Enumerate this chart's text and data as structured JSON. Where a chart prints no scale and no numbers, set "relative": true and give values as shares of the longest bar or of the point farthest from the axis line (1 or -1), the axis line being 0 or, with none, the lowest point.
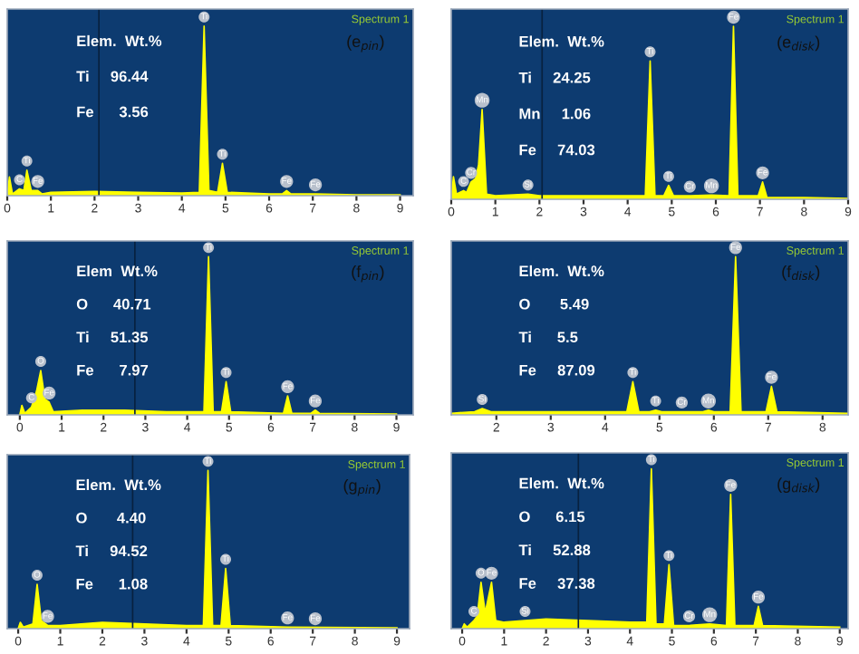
{
  "chart_data": [
    {
      "type": "area",
      "relative": true,
      "xlim": [
        0,
        9.3
      ],
      "xticks": [
        0,
        1,
        2,
        3,
        4,
        5,
        6,
        7,
        8,
        9
      ],
      "series": [
        {
          "color": "#ffff00",
          "x": [
            0,
            0.05,
            0.12,
            0.28,
            0.38,
            0.45,
            0.55,
            0.7,
            0.8,
            1.0,
            2.0,
            3.0,
            4.0,
            4.4,
            4.51,
            4.62,
            4.82,
            4.93,
            5.04,
            6.0,
            6.3,
            6.4,
            6.5,
            7.06,
            8.0,
            9.0
          ],
          "values": [
            0,
            0.11,
            0.01,
            0.04,
            0.03,
            0.15,
            0.03,
            0.03,
            0.01,
            0.02,
            0.025,
            0.02,
            0.015,
            0.02,
            1.0,
            0.03,
            0.02,
            0.19,
            0.02,
            0.01,
            0.01,
            0.03,
            0.01,
            0.01,
            0.005,
            0.005
          ]
        }
      ],
      "ref_lines": [
        {
          "axis": "x",
          "value": 2.1,
          "color": "#08213f"
        }
      ],
      "annotations": [
        "Spectrum 1",
        "(e$_{pin}$)",
        "Elem.  Wt.%",
        "Ti     96.44",
        "Fe      3.56",
        {
          "text": "C",
          "x": 0.28,
          "y": 0.04
        },
        {
          "text": "Ti",
          "x": 0.45,
          "y": 0.15
        },
        {
          "text": "Fe",
          "x": 0.7,
          "y": 0.03
        },
        {
          "text": "Ti",
          "x": 4.51,
          "y": 1.0
        },
        {
          "text": "Ti",
          "x": 4.93,
          "y": 0.19
        },
        {
          "text": "Fe",
          "x": 6.4,
          "y": 0.03
        },
        {
          "text": "Fe",
          "x": 7.06,
          "y": 0.01
        }
      ]
    },
    {
      "type": "area",
      "relative": true,
      "xlim": [
        0,
        9
      ],
      "xticks": [
        0,
        1,
        2,
        3,
        4,
        5,
        6,
        7,
        8,
        9
      ],
      "series": [
        {
          "color": "#ffff00",
          "x": [
            0,
            0.05,
            0.12,
            0.28,
            0.35,
            0.45,
            0.55,
            0.62,
            0.7,
            0.8,
            1.0,
            1.74,
            2.0,
            3.0,
            4.0,
            4.4,
            4.51,
            4.62,
            4.82,
            4.93,
            5.04,
            5.41,
            5.9,
            6.3,
            6.4,
            6.5,
            6.96,
            7.06,
            7.16,
            8.0,
            9.0
          ],
          "values": [
            0,
            0.13,
            0.03,
            0.05,
            0.04,
            0.1,
            0.12,
            0.2,
            0.52,
            0.03,
            0.02,
            0.03,
            0.02,
            0.02,
            0.02,
            0.02,
            0.8,
            0.02,
            0.02,
            0.08,
            0.02,
            0.02,
            0.025,
            0.02,
            1.0,
            0.02,
            0.02,
            0.1,
            0.01,
            0.01,
            0.005
          ]
        }
      ],
      "ref_lines": [
        {
          "axis": "x",
          "value": 2.06,
          "color": "#08213f"
        }
      ],
      "annotations": [
        "Spectrum 1",
        "(e$_{disk}$)",
        "Elem.  Wt.%",
        "Ti     24.25",
        "Mn     1.06",
        "Fe     74.03",
        {
          "text": "C",
          "x": 0.28,
          "y": 0.05
        },
        {
          "text": "Cr",
          "x": 0.45,
          "y": 0.1
        },
        {
          "text": "Mn",
          "x": 0.7,
          "y": 0.52
        },
        {
          "text": "Si",
          "x": 1.74,
          "y": 0.03
        },
        {
          "text": "Ti",
          "x": 4.51,
          "y": 0.8
        },
        {
          "text": "Ti",
          "x": 4.93,
          "y": 0.08
        },
        {
          "text": "Cr",
          "x": 5.41,
          "y": 0.02
        },
        {
          "text": "Mn",
          "x": 5.9,
          "y": 0.025
        },
        {
          "text": "Fe",
          "x": 6.4,
          "y": 1.0
        },
        {
          "text": "Fe",
          "x": 7.06,
          "y": 0.1
        }
      ]
    },
    {
      "type": "area",
      "relative": true,
      "xlim": [
        -0.3,
        9.4
      ],
      "xticks": [
        0,
        1,
        2,
        3,
        4,
        5,
        6,
        7,
        8,
        9
      ],
      "series": [
        {
          "color": "#ffff00",
          "x": [
            0,
            0.05,
            0.12,
            0.28,
            0.4,
            0.5,
            0.6,
            0.7,
            0.8,
            1.5,
            2.5,
            3.5,
            4.4,
            4.51,
            4.62,
            4.82,
            4.93,
            5.04,
            6.3,
            6.4,
            6.5,
            6.96,
            7.06,
            7.16,
            9.0
          ],
          "values": [
            0,
            0.06,
            0.01,
            0.05,
            0.15,
            0.28,
            0.1,
            0.08,
            0.02,
            0.03,
            0.03,
            0.02,
            0.02,
            1.0,
            0.02,
            0.02,
            0.21,
            0.02,
            0.01,
            0.12,
            0.01,
            0.01,
            0.03,
            0.01,
            0.005
          ]
        }
      ],
      "ref_lines": [
        {
          "axis": "x",
          "value": 2.75,
          "color": "#08213f"
        }
      ],
      "annotations": [
        "Spectrum 1",
        "(f$_{pin}$)",
        "Elem  Wt.%",
        "O      40.71",
        "Ti     51.35",
        "Fe      7.97",
        {
          "text": "C",
          "x": 0.28,
          "y": 0.05
        },
        {
          "text": "O",
          "x": 0.5,
          "y": 0.28
        },
        {
          "text": "Fe",
          "x": 0.7,
          "y": 0.08
        },
        {
          "text": "Ti",
          "x": 4.51,
          "y": 1.0
        },
        {
          "text": "Ti",
          "x": 4.93,
          "y": 0.21
        },
        {
          "text": "Fe",
          "x": 6.4,
          "y": 0.12
        },
        {
          "text": "Fe",
          "x": 7.06,
          "y": 0.03
        }
      ]
    },
    {
      "type": "area",
      "relative": true,
      "xlim": [
        1.17,
        8.47
      ],
      "xticks": [
        2,
        3,
        4,
        5,
        6,
        7,
        8
      ],
      "series": [
        {
          "color": "#ffff00",
          "x": [
            1.17,
            1.6,
            1.74,
            1.9,
            3.0,
            4.4,
            4.51,
            4.62,
            4.82,
            4.93,
            5.04,
            5.41,
            5.8,
            5.9,
            6.0,
            6.3,
            6.4,
            6.5,
            6.96,
            7.06,
            7.16,
            8.47
          ],
          "values": [
            0.01,
            0.02,
            0.04,
            0.02,
            0.02,
            0.02,
            0.21,
            0.02,
            0.02,
            0.03,
            0.02,
            0.02,
            0.02,
            0.03,
            0.02,
            0.02,
            1.0,
            0.02,
            0.02,
            0.18,
            0.02,
            0.01
          ]
        }
      ],
      "annotations": [
        "Spectrum 1",
        "(f$_{disk}$)",
        "Elem.  Wt.%",
        "O       5.49",
        "Ti      5.5",
        "Fe     87.09",
        {
          "text": "Si",
          "x": 1.74,
          "y": 0.04
        },
        {
          "text": "Ti",
          "x": 4.51,
          "y": 0.21
        },
        {
          "text": "Ti",
          "x": 4.93,
          "y": 0.03
        },
        {
          "text": "Cr",
          "x": 5.41,
          "y": 0.02
        },
        {
          "text": "Mn",
          "x": 5.9,
          "y": 0.03
        },
        {
          "text": "Fe",
          "x": 6.4,
          "y": 1.0
        },
        {
          "text": "Fe",
          "x": 7.06,
          "y": 0.18
        }
      ]
    },
    {
      "type": "area",
      "relative": true,
      "xlim": [
        -0.26,
        9.3
      ],
      "xticks": [
        0,
        1,
        2,
        3,
        4,
        5,
        6,
        7,
        8,
        9
      ],
      "series": [
        {
          "color": "#ffff00",
          "x": [
            0,
            0.05,
            0.12,
            0.35,
            0.45,
            0.55,
            0.7,
            1.0,
            2.0,
            3.0,
            4.0,
            4.4,
            4.51,
            4.62,
            4.82,
            4.93,
            5.04,
            6.4,
            9.0
          ],
          "values": [
            0,
            0.04,
            0.01,
            0.03,
            0.28,
            0.05,
            0.02,
            0.02,
            0.04,
            0.03,
            0.02,
            0.02,
            1.0,
            0.02,
            0.02,
            0.38,
            0.02,
            0.01,
            0.005
          ]
        }
      ],
      "ref_lines": [
        {
          "axis": "x",
          "value": 2.72,
          "color": "#08213f"
        }
      ],
      "annotations": [
        "Spectrum 1",
        "(g$_{pin}$)",
        "Elem.  Wt.%",
        "O       4.40",
        "Ti     94.52",
        "Fe      1.08",
        {
          "text": "O",
          "x": 0.45,
          "y": 0.28
        },
        {
          "text": "Fe",
          "x": 0.7,
          "y": 0.02
        },
        {
          "text": "Ti",
          "x": 4.51,
          "y": 1.0
        },
        {
          "text": "Ti",
          "x": 4.93,
          "y": 0.38
        },
        {
          "text": "Fe",
          "x": 6.4,
          "y": 0.01
        },
        {
          "text": "Fe",
          "x": 7.06,
          "y": 0.005
        }
      ]
    },
    {
      "type": "area",
      "relative": true,
      "xlim": [
        -0.26,
        9.2
      ],
      "xticks": [
        0,
        1,
        2,
        3,
        4,
        5,
        6,
        7,
        8,
        9
      ],
      "series": [
        {
          "color": "#ffff00",
          "x": [
            0,
            0.05,
            0.12,
            0.28,
            0.36,
            0.45,
            0.55,
            0.7,
            0.8,
            1.0,
            1.5,
            2.0,
            3.0,
            4.0,
            4.4,
            4.51,
            4.62,
            4.82,
            4.93,
            5.04,
            5.41,
            5.9,
            6.3,
            6.4,
            6.5,
            6.96,
            7.06,
            7.16,
            9.0
          ],
          "values": [
            0,
            0.03,
            0.01,
            0.05,
            0.08,
            0.29,
            0.1,
            0.29,
            0.05,
            0.04,
            0.05,
            0.06,
            0.05,
            0.04,
            0.04,
            1.0,
            0.03,
            0.03,
            0.4,
            0.02,
            0.02,
            0.03,
            0.02,
            0.84,
            0.02,
            0.02,
            0.14,
            0.02,
            0.01
          ]
        }
      ],
      "ref_lines": [
        {
          "axis": "x",
          "value": 2.77,
          "color": "#08213f"
        }
      ],
      "annotations": [
        "Spectrum 1",
        "(g$_{disk}$)",
        "Elem.  Wt.%",
        "O      6.15",
        "Ti     52.88",
        "Fe     37.38",
        {
          "text": "C",
          "x": 0.28,
          "y": 0.05
        },
        {
          "text": "O",
          "x": 0.45,
          "y": 0.29
        },
        {
          "text": "Fe",
          "x": 0.7,
          "y": 0.29
        },
        {
          "text": "Si",
          "x": 1.5,
          "y": 0.05
        },
        {
          "text": "Ti",
          "x": 4.51,
          "y": 1.0
        },
        {
          "text": "Ti",
          "x": 4.93,
          "y": 0.4
        },
        {
          "text": "Cr",
          "x": 5.41,
          "y": 0.02
        },
        {
          "text": "Mn",
          "x": 5.9,
          "y": 0.03
        },
        {
          "text": "Fe",
          "x": 6.4,
          "y": 0.84
        },
        {
          "text": "Fe",
          "x": 7.06,
          "y": 0.14
        }
      ]
    }
  ]
}
